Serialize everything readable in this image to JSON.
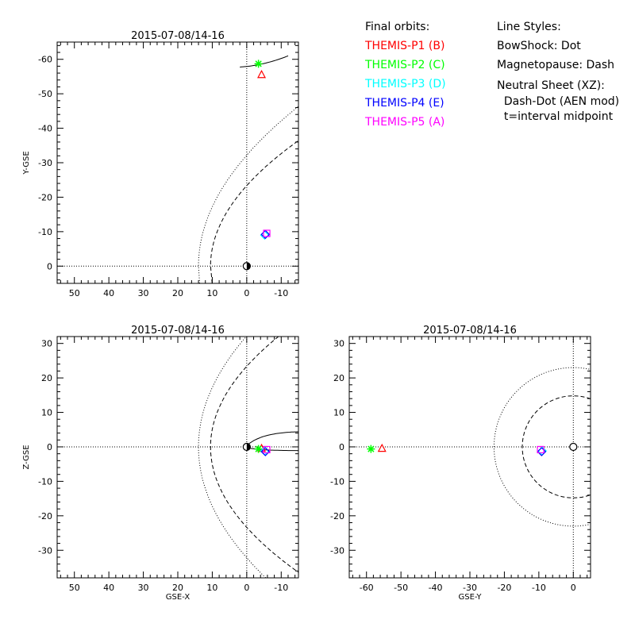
{
  "legend": {
    "orbits_title": "Final orbits:",
    "probes": [
      {
        "label": "THEMIS-P1 (B)",
        "color": "#ff0000"
      },
      {
        "label": "THEMIS-P2 (C)",
        "color": "#00ff00"
      },
      {
        "label": "THEMIS-P3 (D)",
        "color": "#00ffff"
      },
      {
        "label": "THEMIS-P4 (E)",
        "color": "#0000ff"
      },
      {
        "label": "THEMIS-P5 (A)",
        "color": "#ff00ff"
      }
    ],
    "styles_title": "Line Styles:",
    "styles": [
      "BowShock: Dot",
      "Magnetopause: Dash",
      "Neutral Sheet (XZ):",
      "  Dash-Dot (AEN mod)",
      "  t=interval midpoint"
    ]
  },
  "chart_data": [
    {
      "type": "line",
      "panel": "XY",
      "title": "2015-07-08/14-16",
      "xlabel": "",
      "ylabel": "Y-GSE",
      "xlim": [
        55,
        -15
      ],
      "ylim": [
        5,
        -65
      ],
      "xticks": [
        50,
        40,
        30,
        20,
        10,
        0,
        -10
      ],
      "yticks": [
        0,
        -10,
        -20,
        -30,
        -40,
        -50,
        -60
      ],
      "markers": [
        {
          "probe": "P1",
          "symbol": "triangle",
          "x": -4.3,
          "y": -55.5,
          "color": "#ff0000"
        },
        {
          "probe": "P2",
          "symbol": "asterisk",
          "x": -3.4,
          "y": -58.7,
          "color": "#00ff00"
        },
        {
          "probe": "P3",
          "symbol": "diamond",
          "x": -5.2,
          "y": -9.0,
          "color": "#00ffff"
        },
        {
          "probe": "P4",
          "symbol": "diamond",
          "x": -5.4,
          "y": -9.2,
          "color": "#0000ff"
        },
        {
          "probe": "P5",
          "symbol": "square",
          "x": -5.8,
          "y": -9.5,
          "color": "#ff00ff"
        }
      ]
    },
    {
      "type": "line",
      "panel": "XZ",
      "title": "2015-07-08/14-16",
      "xlabel": "GSE-X",
      "ylabel": "Z-GSE",
      "xlim": [
        55,
        -15
      ],
      "ylim": [
        -38,
        32
      ],
      "xticks": [
        50,
        40,
        30,
        20,
        10,
        0,
        -10
      ],
      "yticks": [
        30,
        20,
        10,
        0,
        -10,
        -20,
        -30
      ],
      "markers": [
        {
          "probe": "P1",
          "symbol": "triangle",
          "x": -4.3,
          "y": -0.5,
          "color": "#ff0000"
        },
        {
          "probe": "P2",
          "symbol": "asterisk",
          "x": -3.4,
          "y": -0.6,
          "color": "#00ff00"
        },
        {
          "probe": "P3",
          "symbol": "diamond",
          "x": -5.2,
          "y": -1.2,
          "color": "#00ffff"
        },
        {
          "probe": "P4",
          "symbol": "diamond",
          "x": -5.4,
          "y": -1.4,
          "color": "#0000ff"
        },
        {
          "probe": "P5",
          "symbol": "square",
          "x": -5.8,
          "y": -0.8,
          "color": "#ff00ff"
        }
      ]
    },
    {
      "type": "line",
      "panel": "YZ",
      "title": "2015-07-08/14-16",
      "xlabel": "GSE-Y",
      "ylabel": "",
      "xlim": [
        -65,
        5
      ],
      "ylim": [
        -38,
        32
      ],
      "xticks": [
        -60,
        -50,
        -40,
        -30,
        -20,
        -10,
        0
      ],
      "yticks": [
        30,
        20,
        10,
        0,
        -10,
        -20,
        -30
      ],
      "markers": [
        {
          "probe": "P1",
          "symbol": "triangle",
          "x": -55.5,
          "y": -0.5,
          "color": "#ff0000"
        },
        {
          "probe": "P2",
          "symbol": "asterisk",
          "x": -58.7,
          "y": -0.6,
          "color": "#00ff00"
        },
        {
          "probe": "P3",
          "symbol": "diamond",
          "x": -9.0,
          "y": -1.2,
          "color": "#00ffff"
        },
        {
          "probe": "P4",
          "symbol": "diamond",
          "x": -9.2,
          "y": -1.4,
          "color": "#0000ff"
        },
        {
          "probe": "P5",
          "symbol": "square",
          "x": -9.5,
          "y": -0.8,
          "color": "#ff00ff"
        }
      ]
    }
  ]
}
